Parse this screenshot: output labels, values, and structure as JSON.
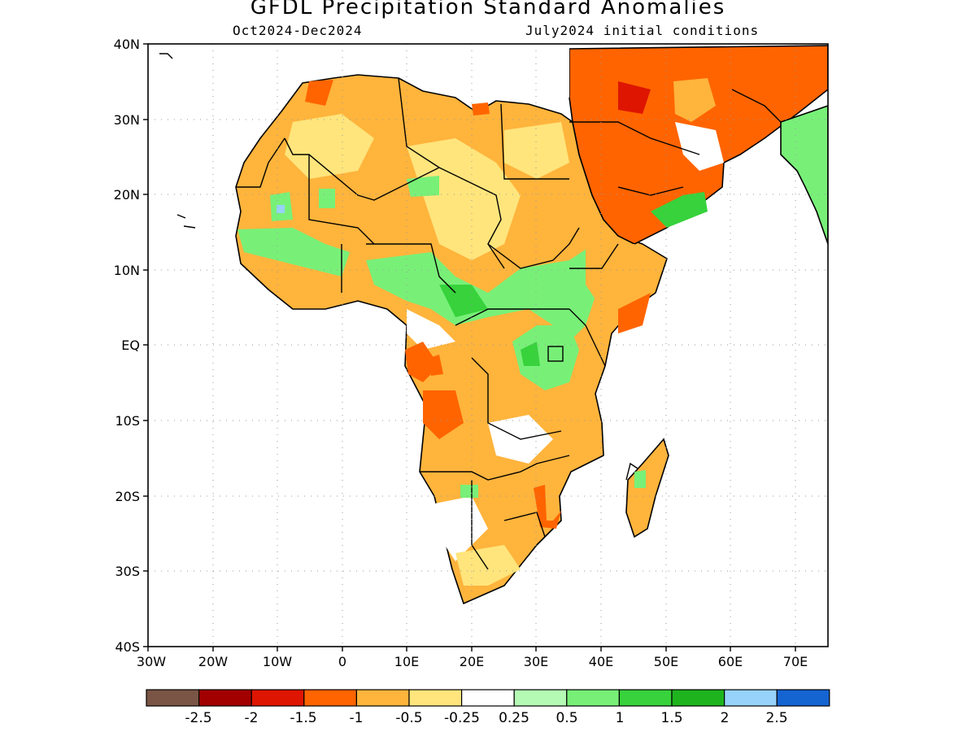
{
  "title": "GFDL Precipitation Standard Anomalies",
  "period": "Oct2024-Dec2024",
  "initial_conditions": "July2024 initial conditions",
  "axes": {
    "lon_ticks": [
      "30W",
      "20W",
      "10W",
      "0",
      "10E",
      "20E",
      "30E",
      "40E",
      "50E",
      "60E",
      "70E"
    ],
    "lat_ticks": [
      "40N",
      "30N",
      "20N",
      "10N",
      "EQ",
      "10S",
      "20S",
      "30S",
      "40S"
    ]
  },
  "colorbar": {
    "colors": [
      "#7a5545",
      "#a20000",
      "#de1500",
      "#ff6400",
      "#ffb43c",
      "#ffe57c",
      "#ffffff",
      "#b4fab4",
      "#78f078",
      "#37d23c",
      "#1eb41e",
      "#96d2fa",
      "#1464d2"
    ],
    "labels": [
      "-2.5",
      "-2",
      "-1.5",
      "-1",
      "-0.5",
      "-0.25",
      "0.25",
      "0.5",
      "1",
      "1.5",
      "2",
      "2.5"
    ]
  },
  "map_colors": {
    "orange": "#ffb43c",
    "yellow": "#ffe57c",
    "dark_orange": "#ff6400",
    "red": "#de1500",
    "green": "#78f078",
    "mid_green": "#37d23c",
    "light_green": "#b4fab4",
    "light_blue": "#96d2fa"
  }
}
